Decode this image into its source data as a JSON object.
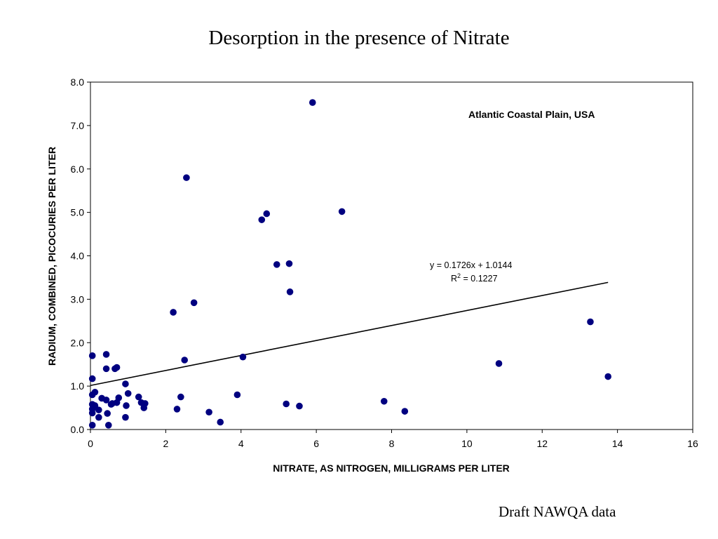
{
  "slide": {
    "title": "Desorption in the presence of Nitrate",
    "footer": "Draft NAWQA data"
  },
  "chart_data": {
    "type": "scatter",
    "xlabel": "NITRATE, AS NITROGEN, MILLIGRAMS PER LITER",
    "ylabel": "RADIUM, COMBINED, PICOCURIES PER LITER",
    "xlim": [
      0,
      16
    ],
    "ylim": [
      0,
      8
    ],
    "x_ticks": [
      "0",
      "2",
      "4",
      "6",
      "8",
      "10",
      "12",
      "14",
      "16"
    ],
    "y_ticks": [
      "0.0",
      "1.0",
      "2.0",
      "3.0",
      "4.0",
      "5.0",
      "6.0",
      "7.0",
      "8.0"
    ],
    "grid": false,
    "point_color": "#000080",
    "series": [
      {
        "points": [
          [
            0.05,
            1.7
          ],
          [
            0.05,
            1.17
          ],
          [
            0.05,
            0.8
          ],
          [
            0.05,
            0.58
          ],
          [
            0.05,
            0.47
          ],
          [
            0.05,
            0.38
          ],
          [
            0.05,
            0.1
          ],
          [
            0.12,
            0.86
          ],
          [
            0.12,
            0.55
          ],
          [
            0.22,
            0.45
          ],
          [
            0.22,
            0.28
          ],
          [
            0.3,
            0.72
          ],
          [
            0.42,
            1.4
          ],
          [
            0.42,
            1.73
          ],
          [
            0.42,
            0.68
          ],
          [
            0.45,
            0.37
          ],
          [
            0.48,
            0.1
          ],
          [
            0.55,
            0.58
          ],
          [
            0.58,
            0.6
          ],
          [
            0.65,
            1.4
          ],
          [
            0.7,
            1.43
          ],
          [
            0.7,
            0.62
          ],
          [
            0.75,
            0.73
          ],
          [
            0.93,
            1.05
          ],
          [
            0.93,
            0.28
          ],
          [
            0.95,
            0.55
          ],
          [
            1.0,
            0.83
          ],
          [
            1.28,
            0.75
          ],
          [
            1.35,
            0.62
          ],
          [
            1.42,
            0.5
          ],
          [
            1.45,
            0.6
          ],
          [
            2.2,
            2.7
          ],
          [
            2.3,
            0.47
          ],
          [
            2.4,
            0.75
          ],
          [
            2.5,
            1.6
          ],
          [
            2.55,
            5.8
          ],
          [
            2.75,
            2.92
          ],
          [
            3.15,
            0.4
          ],
          [
            3.45,
            0.17
          ],
          [
            3.9,
            0.8
          ],
          [
            4.05,
            1.67
          ],
          [
            4.55,
            4.83
          ],
          [
            4.68,
            4.97
          ],
          [
            4.95,
            3.8
          ],
          [
            5.2,
            0.59
          ],
          [
            5.28,
            3.82
          ],
          [
            5.3,
            3.17
          ],
          [
            5.55,
            0.54
          ],
          [
            5.9,
            7.53
          ],
          [
            6.68,
            5.02
          ],
          [
            7.8,
            0.65
          ],
          [
            8.35,
            0.42
          ],
          [
            10.85,
            1.52
          ],
          [
            13.28,
            2.48
          ],
          [
            13.75,
            1.22
          ]
        ]
      }
    ],
    "trendline": {
      "slope": 0.1726,
      "intercept": 1.0144,
      "x_range": [
        0,
        13.75
      ],
      "equation_label": "y = 0.1726x + 1.0144",
      "r2_prefix": "R",
      "r2_sup": "2",
      "r2_value": " = 0.1227"
    },
    "annotation": "Atlantic Coastal Plain, USA"
  }
}
